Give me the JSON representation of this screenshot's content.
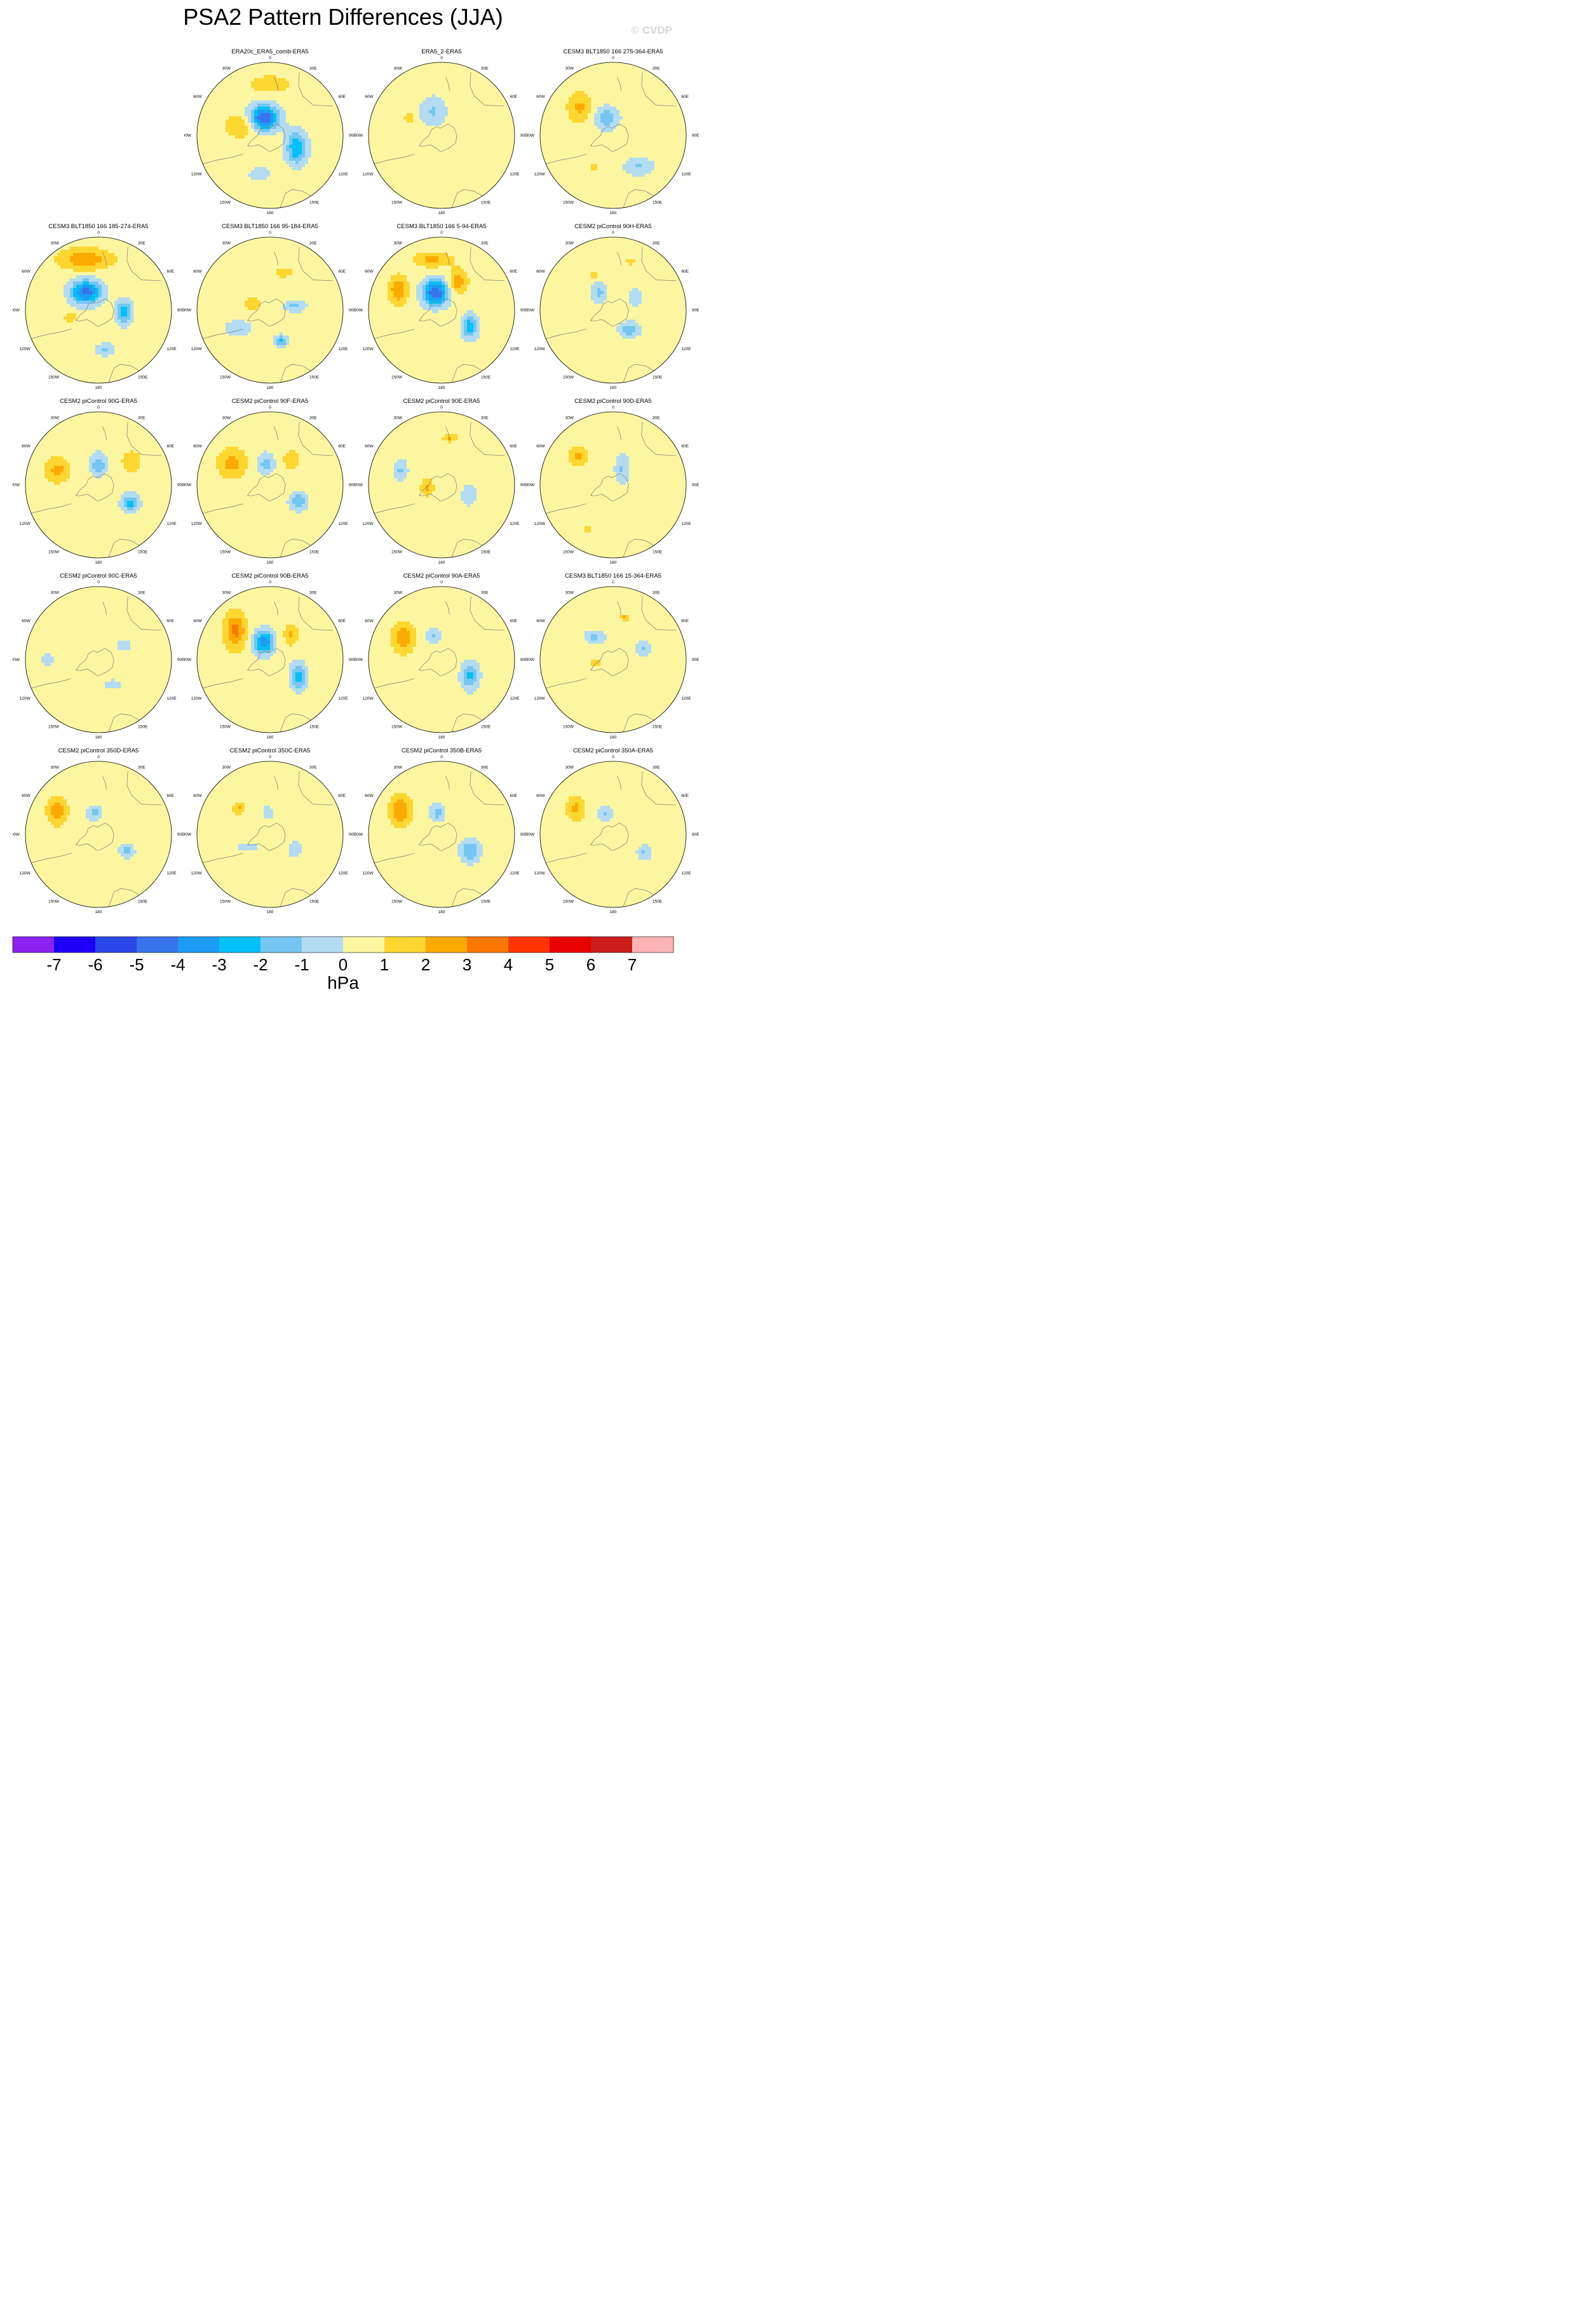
{
  "title": "PSA2 Pattern Differences (JJA)",
  "watermark": "© CVDP",
  "units": "hPa",
  "longitude_labels": [
    "0",
    "30E",
    "60E",
    "90E",
    "120E",
    "150E",
    "180",
    "150W",
    "120W",
    "90W",
    "60W",
    "30W"
  ],
  "colorbar": {
    "levels": [
      -7,
      -6,
      -5,
      -4,
      -3,
      -2,
      -1,
      0,
      1,
      2,
      3,
      4,
      5,
      6,
      7
    ],
    "tick_labels": [
      "-7",
      "-6",
      "-5",
      "-4",
      "-3",
      "-2",
      "-1",
      "0",
      "1",
      "2",
      "3",
      "4",
      "5",
      "6",
      "7"
    ],
    "colors": [
      "#8a23f0",
      "#1e00f8",
      "#2948e5",
      "#3773ea",
      "#1e9bf5",
      "#00c0f8",
      "#75c6f1",
      "#b3dcf3",
      "#fdf6a0",
      "#fdd630",
      "#fdaa00",
      "#fb7800",
      "#ff3400",
      "#e80000",
      "#cd1d1d",
      "#fdb4b4"
    ]
  },
  "panels": [
    {
      "title": "ERA20c_ERA5_comb-ERA5",
      "row": 0,
      "col": 1,
      "blobs": [
        {
          "lon": 200,
          "r": 0.25,
          "v": -5.5,
          "sx": 0.2,
          "sy": 0.17
        },
        {
          "lon": 65,
          "r": 0.4,
          "v": -3.5,
          "sx": 0.14,
          "sy": 0.22
        },
        {
          "lon": 250,
          "r": 0.4,
          "v": 1.6,
          "sx": 0.22,
          "sy": 0.16
        },
        {
          "lon": 345,
          "r": 0.55,
          "v": -1.5,
          "sx": 0.14,
          "sy": 0.09
        },
        {
          "lon": 180,
          "r": 0.7,
          "v": 1.2,
          "sx": 0.28,
          "sy": 0.12
        }
      ]
    },
    {
      "title": "ERA5_2-ERA5",
      "row": 0,
      "col": 2,
      "blobs": [
        {
          "lon": 200,
          "r": 0.35,
          "v": -1.6,
          "sx": 0.18,
          "sy": 0.2
        },
        {
          "lon": 240,
          "r": 0.5,
          "v": 1.2,
          "sx": 0.08,
          "sy": 0.08
        }
      ]
    },
    {
      "title": "CESM3 BLT1850 166 275-364-ERA5",
      "row": 0,
      "col": 3,
      "blobs": [
        {
          "lon": 200,
          "r": 0.25,
          "v": -2.3,
          "sx": 0.16,
          "sy": 0.15
        },
        {
          "lon": 230,
          "r": 0.6,
          "v": 1.7,
          "sx": 0.16,
          "sy": 0.2
        },
        {
          "lon": 40,
          "r": 0.55,
          "v": -1.6,
          "sx": 0.2,
          "sy": 0.12
        },
        {
          "lon": 330,
          "r": 0.5,
          "v": 1.5,
          "sx": 0.05,
          "sy": 0.05
        }
      ]
    },
    {
      "title": "CESM3 BLT1850 166 185-274-ERA5",
      "row": 1,
      "col": 0,
      "blobs": [
        {
          "lon": 215,
          "r": 0.3,
          "v": -5.0,
          "sx": 0.2,
          "sy": 0.16
        },
        {
          "lon": 85,
          "r": 0.35,
          "v": -3.0,
          "sx": 0.11,
          "sy": 0.17
        },
        {
          "lon": 195,
          "r": 0.72,
          "v": 2.3,
          "sx": 0.35,
          "sy": 0.14
        },
        {
          "lon": 10,
          "r": 0.55,
          "v": -1.6,
          "sx": 0.13,
          "sy": 0.09
        },
        {
          "lon": 285,
          "r": 0.4,
          "v": 1.5,
          "sx": 0.08,
          "sy": 0.06
        }
      ]
    },
    {
      "title": "CESM3 BLT1850 166 95-184-ERA5",
      "row": 1,
      "col": 1,
      "blobs": [
        {
          "lon": 20,
          "r": 0.45,
          "v": -2.8,
          "sx": 0.08,
          "sy": 0.08
        },
        {
          "lon": 100,
          "r": 0.35,
          "v": -1.8,
          "sx": 0.15,
          "sy": 0.08
        },
        {
          "lon": 250,
          "r": 0.25,
          "v": 1.6,
          "sx": 0.12,
          "sy": 0.07
        },
        {
          "lon": 160,
          "r": 0.55,
          "v": 1.6,
          "sx": 0.1,
          "sy": 0.06
        },
        {
          "lon": 300,
          "r": 0.5,
          "v": -1.5,
          "sx": 0.18,
          "sy": 0.1
        }
      ]
    },
    {
      "title": "CESM3 BLT1850 166 5-94-ERA5",
      "row": 1,
      "col": 2,
      "blobs": [
        {
          "lon": 200,
          "r": 0.25,
          "v": -5.5,
          "sx": 0.17,
          "sy": 0.17
        },
        {
          "lon": 60,
          "r": 0.45,
          "v": -3.2,
          "sx": 0.11,
          "sy": 0.16
        },
        {
          "lon": 245,
          "r": 0.65,
          "v": 2.5,
          "sx": 0.12,
          "sy": 0.18
        },
        {
          "lon": 150,
          "r": 0.45,
          "v": 2.2,
          "sx": 0.12,
          "sy": 0.16
        },
        {
          "lon": 190,
          "r": 0.7,
          "v": 1.8,
          "sx": 0.25,
          "sy": 0.1
        }
      ]
    },
    {
      "title": "CESM2 piControl 90H-ERA5",
      "row": 1,
      "col": 3,
      "blobs": [
        {
          "lon": 40,
          "r": 0.35,
          "v": -2.3,
          "sx": 0.14,
          "sy": 0.1
        },
        {
          "lon": 220,
          "r": 0.3,
          "v": -1.8,
          "sx": 0.1,
          "sy": 0.14
        },
        {
          "lon": 120,
          "r": 0.35,
          "v": -1.5,
          "sx": 0.1,
          "sy": 0.12
        },
        {
          "lon": 210,
          "r": 0.55,
          "v": 1.5,
          "sx": 0.05,
          "sy": 0.05
        },
        {
          "lon": 160,
          "r": 0.7,
          "v": 1.6,
          "sx": 0.05,
          "sy": 0.04
        }
      ]
    },
    {
      "title": "CESM2 piControl 90G-ERA5",
      "row": 2,
      "col": 0,
      "blobs": [
        {
          "lon": 60,
          "r": 0.5,
          "v": -2.8,
          "sx": 0.12,
          "sy": 0.12
        },
        {
          "lon": 180,
          "r": 0.28,
          "v": -2.2,
          "sx": 0.12,
          "sy": 0.15
        },
        {
          "lon": 250,
          "r": 0.6,
          "v": 1.8,
          "sx": 0.17,
          "sy": 0.17
        },
        {
          "lon": 125,
          "r": 0.55,
          "v": 1.5,
          "sx": 0.12,
          "sy": 0.14
        }
      ]
    },
    {
      "title": "CESM2 piControl 90F-ERA5",
      "row": 2,
      "col": 1,
      "blobs": [
        {
          "lon": 60,
          "r": 0.45,
          "v": -2.5,
          "sx": 0.12,
          "sy": 0.12
        },
        {
          "lon": 190,
          "r": 0.3,
          "v": -2.0,
          "sx": 0.11,
          "sy": 0.14
        },
        {
          "lon": 240,
          "r": 0.6,
          "v": 1.9,
          "sx": 0.18,
          "sy": 0.2
        },
        {
          "lon": 140,
          "r": 0.45,
          "v": 1.5,
          "sx": 0.1,
          "sy": 0.12
        }
      ]
    },
    {
      "title": "CESM2 piControl 90E-ERA5",
      "row": 2,
      "col": 2,
      "blobs": [
        {
          "lon": 280,
          "r": 0.2,
          "v": 2.0,
          "sx": 0.08,
          "sy": 0.1
        },
        {
          "lon": 250,
          "r": 0.6,
          "v": -1.6,
          "sx": 0.1,
          "sy": 0.14
        },
        {
          "lon": 70,
          "r": 0.4,
          "v": -1.5,
          "sx": 0.1,
          "sy": 0.14
        },
        {
          "lon": 170,
          "r": 0.65,
          "v": 1.6,
          "sx": 0.1,
          "sy": 0.05
        }
      ]
    },
    {
      "title": "CESM2 piControl 90D-ERA5",
      "row": 2,
      "col": 3,
      "blobs": [
        {
          "lon": 150,
          "r": 0.25,
          "v": -1.6,
          "sx": 0.1,
          "sy": 0.2
        },
        {
          "lon": 230,
          "r": 0.62,
          "v": 1.8,
          "sx": 0.12,
          "sy": 0.12
        },
        {
          "lon": 330,
          "r": 0.7,
          "v": 1.5,
          "sx": 0.06,
          "sy": 0.04
        }
      ]
    },
    {
      "title": "CESM2 piControl 90C-ERA5",
      "row": 3,
      "col": 0,
      "blobs": [
        {
          "lon": 30,
          "r": 0.4,
          "v": -1.6,
          "sx": 0.1,
          "sy": 0.06
        },
        {
          "lon": 270,
          "r": 0.7,
          "v": -1.7,
          "sx": 0.07,
          "sy": 0.08
        },
        {
          "lon": 120,
          "r": 0.4,
          "v": -1.5,
          "sx": 0.08,
          "sy": 0.08
        }
      ]
    },
    {
      "title": "CESM2 piControl 90B-ERA5",
      "row": 3,
      "col": 1,
      "blobs": [
        {
          "lon": 200,
          "r": 0.25,
          "v": -4.5,
          "sx": 0.13,
          "sy": 0.16
        },
        {
          "lon": 60,
          "r": 0.45,
          "v": -3.0,
          "sx": 0.11,
          "sy": 0.18
        },
        {
          "lon": 230,
          "r": 0.62,
          "v": 2.8,
          "sx": 0.14,
          "sy": 0.24
        },
        {
          "lon": 140,
          "r": 0.45,
          "v": 1.6,
          "sx": 0.09,
          "sy": 0.14
        }
      ]
    },
    {
      "title": "CESM2 piControl 90A-ERA5",
      "row": 3,
      "col": 2,
      "blobs": [
        {
          "lon": 60,
          "r": 0.45,
          "v": -2.8,
          "sx": 0.12,
          "sy": 0.18
        },
        {
          "lon": 200,
          "r": 0.35,
          "v": -1.6,
          "sx": 0.11,
          "sy": 0.1
        },
        {
          "lon": 240,
          "r": 0.6,
          "v": 2.2,
          "sx": 0.15,
          "sy": 0.2
        }
      ]
    },
    {
      "title": "CESM3 BLT1850 166 15-364-ERA5",
      "row": 3,
      "col": 3,
      "blobs": [
        {
          "lon": 220,
          "r": 0.4,
          "v": -1.8,
          "sx": 0.14,
          "sy": 0.08
        },
        {
          "lon": 110,
          "r": 0.45,
          "v": -1.6,
          "sx": 0.1,
          "sy": 0.1
        },
        {
          "lon": 280,
          "r": 0.25,
          "v": 1.8,
          "sx": 0.05,
          "sy": 0.05
        },
        {
          "lon": 165,
          "r": 0.6,
          "v": 2.0,
          "sx": 0.06,
          "sy": 0.04
        }
      ]
    },
    {
      "title": "CESM2 piControl 350D-ERA5",
      "row": 4,
      "col": 0,
      "blobs": [
        {
          "lon": 60,
          "r": 0.45,
          "v": -1.8,
          "sx": 0.1,
          "sy": 0.1
        },
        {
          "lon": 190,
          "r": 0.3,
          "v": -2.0,
          "sx": 0.1,
          "sy": 0.1
        },
        {
          "lon": 240,
          "r": 0.65,
          "v": 2.2,
          "sx": 0.13,
          "sy": 0.18
        }
      ]
    },
    {
      "title": "CESM2 piControl 350C-ERA5",
      "row": 4,
      "col": 1,
      "blobs": [
        {
          "lon": 60,
          "r": 0.4,
          "v": -1.5,
          "sx": 0.1,
          "sy": 0.1
        },
        {
          "lon": 300,
          "r": 0.35,
          "v": -1.4,
          "sx": 0.15,
          "sy": 0.06
        },
        {
          "lon": 230,
          "r": 0.55,
          "v": 1.6,
          "sx": 0.08,
          "sy": 0.08
        },
        {
          "lon": 185,
          "r": 0.3,
          "v": -1.5,
          "sx": 0.08,
          "sy": 0.08
        }
      ]
    },
    {
      "title": "CESM2 piControl 350B-ERA5",
      "row": 4,
      "col": 2,
      "blobs": [
        {
          "lon": 60,
          "r": 0.45,
          "v": -2.5,
          "sx": 0.13,
          "sy": 0.16
        },
        {
          "lon": 190,
          "r": 0.3,
          "v": -2.0,
          "sx": 0.1,
          "sy": 0.12
        },
        {
          "lon": 240,
          "r": 0.65,
          "v": 2.5,
          "sx": 0.14,
          "sy": 0.2
        }
      ]
    },
    {
      "title": "CESM2 piControl 350A-ERA5",
      "row": 4,
      "col": 3,
      "blobs": [
        {
          "lon": 60,
          "r": 0.5,
          "v": -1.6,
          "sx": 0.1,
          "sy": 0.1
        },
        {
          "lon": 200,
          "r": 0.3,
          "v": -1.6,
          "sx": 0.1,
          "sy": 0.12
        },
        {
          "lon": 235,
          "r": 0.62,
          "v": 1.8,
          "sx": 0.12,
          "sy": 0.16
        }
      ]
    }
  ]
}
